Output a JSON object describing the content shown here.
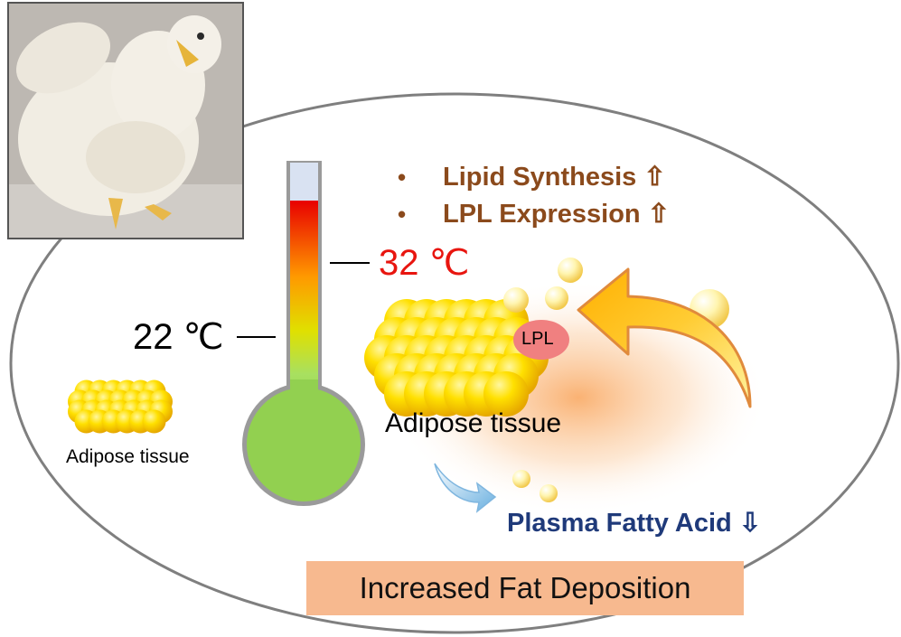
{
  "effects": [
    {
      "label": "Lipid Synthesis",
      "arrow": "⇧"
    },
    {
      "label": "LPL Expression",
      "arrow": "⇧"
    }
  ],
  "temperatures": {
    "high": "32 ℃",
    "low": "22 ℃"
  },
  "labels": {
    "adipose_left": "Adipose tissue",
    "adipose_center": "Adipose tissue",
    "lpl": "LPL",
    "plasma": "Plasma Fatty Acid",
    "plasma_arrow": "⇩"
  },
  "result": "Increased Fat Deposition",
  "colors": {
    "effect_text": "#8b4a1c",
    "plasma_text": "#1f3a7a",
    "high_temp": "#e8150f",
    "result_box": "#f7b98f",
    "lpl_badge": "#f08080",
    "fat_cell": "#f7d000",
    "thermo_bulb": "#92d050"
  }
}
